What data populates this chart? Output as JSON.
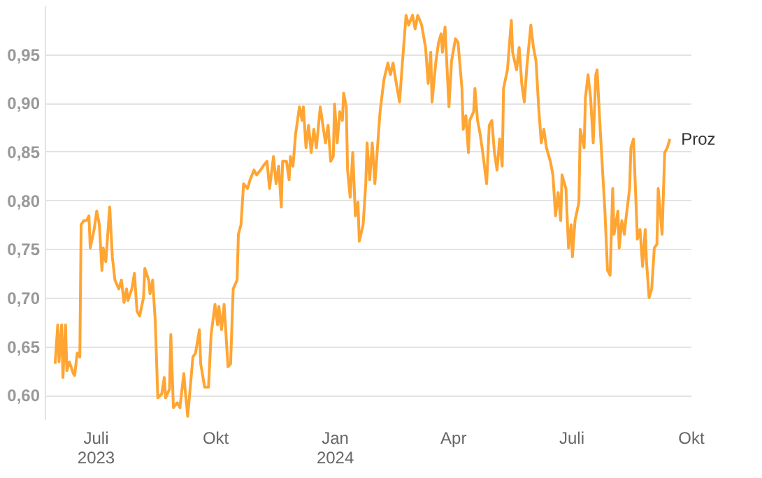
{
  "chart_data": {
    "type": "line",
    "xlim": [
      "2023-05-23",
      "2024-10-01"
    ],
    "xticks": [
      {
        "value": "2023-07-01",
        "label": "Juli 2023"
      },
      {
        "value": "2023-10-01",
        "label": "Okt"
      },
      {
        "value": "2024-01-01",
        "label": "Jan 2024"
      },
      {
        "value": "2024-04-01",
        "label": "Apr"
      },
      {
        "value": "2024-07-01",
        "label": "Juli"
      },
      {
        "value": "2024-10-01",
        "label": "Okt"
      }
    ],
    "yticks": [
      {
        "value": 0.6,
        "label": "0,60"
      },
      {
        "value": 0.65,
        "label": "0,65"
      },
      {
        "value": 0.7,
        "label": "0,70"
      },
      {
        "value": 0.75,
        "label": "0,75"
      },
      {
        "value": 0.8,
        "label": "0,80"
      },
      {
        "value": 0.85,
        "label": "0,85"
      },
      {
        "value": 0.9,
        "label": "0,90"
      },
      {
        "value": 0.95,
        "label": "0,95"
      }
    ],
    "ylim": [
      0.575,
      1.0
    ],
    "grid": "y",
    "marker": "none",
    "line_style": "solid",
    "x": [
      "2023-05-31",
      "2023-06-02",
      "2023-06-03",
      "2023-06-05",
      "2023-06-06",
      "2023-06-08",
      "2023-06-09",
      "2023-06-11",
      "2023-06-14",
      "2023-06-15",
      "2023-06-17",
      "2023-06-19",
      "2023-06-20",
      "2023-06-22",
      "2023-06-24",
      "2023-06-26",
      "2023-06-27",
      "2023-06-30",
      "2023-07-02",
      "2023-07-04",
      "2023-07-06",
      "2023-07-07",
      "2023-07-09",
      "2023-07-11",
      "2023-07-12",
      "2023-07-14",
      "2023-07-16",
      "2023-07-19",
      "2023-07-21",
      "2023-07-23",
      "2023-07-25",
      "2023-07-26",
      "2023-07-29",
      "2023-07-31",
      "2023-08-02",
      "2023-08-04",
      "2023-08-07",
      "2023-08-08",
      "2023-08-11",
      "2023-08-12",
      "2023-08-14",
      "2023-08-16",
      "2023-08-18",
      "2023-08-21",
      "2023-08-23",
      "2023-08-24",
      "2023-08-27",
      "2023-08-28",
      "2023-08-30",
      "2023-09-02",
      "2023-09-04",
      "2023-09-07",
      "2023-09-08",
      "2023-09-10",
      "2023-09-14",
      "2023-09-16",
      "2023-09-19",
      "2023-09-20",
      "2023-09-23",
      "2023-09-26",
      "2023-09-28",
      "2023-10-01",
      "2023-10-03",
      "2023-10-04",
      "2023-10-06",
      "2023-10-08",
      "2023-10-09",
      "2023-10-11",
      "2023-10-13",
      "2023-10-15",
      "2023-10-18",
      "2023-10-19",
      "2023-10-21",
      "2023-10-23",
      "2023-10-26",
      "2023-10-28",
      "2023-10-31",
      "2023-11-02",
      "2023-11-05",
      "2023-11-07",
      "2023-11-10",
      "2023-11-12",
      "2023-11-15",
      "2023-11-17",
      "2023-11-19",
      "2023-11-21",
      "2023-11-22",
      "2023-11-25",
      "2023-11-27",
      "2023-11-28",
      "2023-11-30",
      "2023-12-02",
      "2023-12-05",
      "2023-12-07",
      "2023-12-08",
      "2023-12-10",
      "2023-12-12",
      "2023-12-14",
      "2023-12-16",
      "2023-12-18",
      "2023-12-21",
      "2023-12-23",
      "2023-12-25",
      "2023-12-27",
      "2023-12-29",
      "2023-12-31",
      "2024-01-01",
      "2024-01-03",
      "2024-01-05",
      "2024-01-07",
      "2024-01-08",
      "2024-01-10",
      "2024-01-11",
      "2024-01-13",
      "2024-01-15",
      "2024-01-17",
      "2024-01-19",
      "2024-01-20",
      "2024-01-23",
      "2024-01-25",
      "2024-01-26",
      "2024-01-28",
      "2024-01-30",
      "2024-02-01",
      "2024-02-05",
      "2024-02-08",
      "2024-02-11",
      "2024-02-13",
      "2024-02-15",
      "2024-02-17",
      "2024-02-20",
      "2024-02-22",
      "2024-02-25",
      "2024-02-27",
      "2024-03-01",
      "2024-03-03",
      "2024-03-05",
      "2024-03-08",
      "2024-03-11",
      "2024-03-13",
      "2024-03-15",
      "2024-03-16",
      "2024-03-19",
      "2024-03-21",
      "2024-03-23",
      "2024-03-24",
      "2024-03-26",
      "2024-03-29",
      "2024-03-31",
      "2024-04-03",
      "2024-04-05",
      "2024-04-08",
      "2024-04-09",
      "2024-04-11",
      "2024-04-13",
      "2024-04-14",
      "2024-04-17",
      "2024-04-18",
      "2024-04-20",
      "2024-04-22",
      "2024-04-24",
      "2024-04-27",
      "2024-04-29",
      "2024-05-01",
      "2024-05-03",
      "2024-05-05",
      "2024-05-07",
      "2024-05-09",
      "2024-05-10",
      "2024-05-13",
      "2024-05-16",
      "2024-05-17",
      "2024-05-20",
      "2024-05-22",
      "2024-05-24",
      "2024-05-26",
      "2024-05-28",
      "2024-05-31",
      "2024-06-02",
      "2024-06-04",
      "2024-06-06",
      "2024-06-08",
      "2024-06-10",
      "2024-06-12",
      "2024-06-15",
      "2024-06-17",
      "2024-06-19",
      "2024-06-21",
      "2024-06-23",
      "2024-06-24",
      "2024-06-27",
      "2024-06-29",
      "2024-07-01",
      "2024-07-02",
      "2024-07-04",
      "2024-07-07",
      "2024-07-08",
      "2024-07-11",
      "2024-07-12",
      "2024-07-14",
      "2024-07-16",
      "2024-07-18",
      "2024-07-20",
      "2024-07-21",
      "2024-07-23",
      "2024-07-25",
      "2024-07-27",
      "2024-07-29",
      "2024-07-31",
      "2024-08-02",
      "2024-08-03",
      "2024-08-06",
      "2024-08-07",
      "2024-08-09",
      "2024-08-11",
      "2024-08-12",
      "2024-08-15",
      "2024-08-16",
      "2024-08-18",
      "2024-08-21",
      "2024-08-23",
      "2024-08-25",
      "2024-08-27",
      "2024-08-28",
      "2024-08-30",
      "2024-09-01",
      "2024-09-03",
      "2024-09-05",
      "2024-09-06",
      "2024-09-09",
      "2024-09-11",
      "2024-09-13",
      "2024-09-15"
    ],
    "series": [
      {
        "name": "Proz",
        "color": "#ffa533",
        "values": [
          0.632,
          0.672,
          0.634,
          0.672,
          0.618,
          0.672,
          0.625,
          0.634,
          0.622,
          0.62,
          0.643,
          0.639,
          0.775,
          0.779,
          0.779,
          0.784,
          0.751,
          0.77,
          0.789,
          0.775,
          0.728,
          0.751,
          0.737,
          0.775,
          0.793,
          0.742,
          0.718,
          0.709,
          0.718,
          0.695,
          0.709,
          0.697,
          0.709,
          0.725,
          0.686,
          0.681,
          0.7,
          0.73,
          0.718,
          0.704,
          0.718,
          0.677,
          0.597,
          0.601,
          0.618,
          0.597,
          0.606,
          0.662,
          0.587,
          0.592,
          0.587,
          0.622,
          0.606,
          0.578,
          0.639,
          0.643,
          0.667,
          0.632,
          0.608,
          0.608,
          0.662,
          0.693,
          0.672,
          0.691,
          0.667,
          0.693,
          0.672,
          0.629,
          0.632,
          0.709,
          0.718,
          0.765,
          0.775,
          0.817,
          0.812,
          0.821,
          0.831,
          0.826,
          0.831,
          0.835,
          0.84,
          0.812,
          0.845,
          0.817,
          0.835,
          0.793,
          0.84,
          0.84,
          0.821,
          0.845,
          0.835,
          0.868,
          0.896,
          0.882,
          0.896,
          0.854,
          0.877,
          0.849,
          0.873,
          0.854,
          0.896,
          0.877,
          0.859,
          0.877,
          0.84,
          0.845,
          0.899,
          0.859,
          0.891,
          0.882,
          0.91,
          0.896,
          0.831,
          0.803,
          0.849,
          0.784,
          0.798,
          0.758,
          0.775,
          0.817,
          0.859,
          0.821,
          0.859,
          0.817,
          0.891,
          0.924,
          0.941,
          0.929,
          0.941,
          0.924,
          0.901,
          0.938,
          0.99,
          0.98,
          0.99,
          0.976,
          0.99,
          0.98,
          0.957,
          0.92,
          0.952,
          0.901,
          0.943,
          0.962,
          0.971,
          0.952,
          0.978,
          0.896,
          0.943,
          0.966,
          0.962,
          0.915,
          0.873,
          0.887,
          0.849,
          0.882,
          0.891,
          0.915,
          0.882,
          0.868,
          0.849,
          0.817,
          0.877,
          0.882,
          0.849,
          0.831,
          0.863,
          0.835,
          0.915,
          0.934,
          0.985,
          0.952,
          0.934,
          0.957,
          0.92,
          0.901,
          0.938,
          0.98,
          0.957,
          0.943,
          0.896,
          0.859,
          0.873,
          0.854,
          0.84,
          0.826,
          0.784,
          0.808,
          0.779,
          0.826,
          0.812,
          0.751,
          0.775,
          0.742,
          0.779,
          0.798,
          0.873,
          0.854,
          0.905,
          0.929,
          0.905,
          0.859,
          0.929,
          0.934,
          0.882,
          0.835,
          0.789,
          0.728,
          0.723,
          0.812,
          0.765,
          0.789,
          0.751,
          0.779,
          0.765,
          0.779,
          0.812,
          0.854,
          0.863,
          0.76,
          0.77,
          0.732,
          0.77,
          0.737,
          0.7,
          0.709,
          0.751,
          0.755,
          0.812,
          0.765,
          0.849,
          0.854,
          0.863
        ]
      }
    ]
  }
}
